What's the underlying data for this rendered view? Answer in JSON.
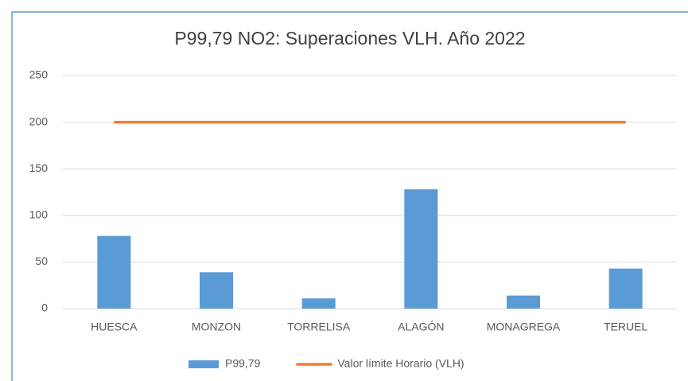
{
  "chart_data": {
    "type": "combo",
    "title": "P99,79 NO2: Superaciones VLH. Año 2022",
    "categories": [
      "HUESCA",
      "MONZON",
      "TORRELISA",
      "ALAGÓN",
      "MONAGREGA",
      "TERUEL"
    ],
    "series": [
      {
        "name": "P99,79",
        "type": "bar",
        "color": "#5b9bd5",
        "values": [
          78,
          39,
          11,
          128,
          14,
          43
        ]
      },
      {
        "name": "Valor límite Horario (VLH)",
        "type": "line",
        "color": "#ed7d31",
        "values": [
          200,
          200,
          200,
          200,
          200,
          200
        ]
      }
    ],
    "ylim": [
      0,
      250
    ],
    "yticks": [
      0,
      50,
      100,
      150,
      200,
      250
    ],
    "grid": true,
    "legend": "bottom"
  }
}
